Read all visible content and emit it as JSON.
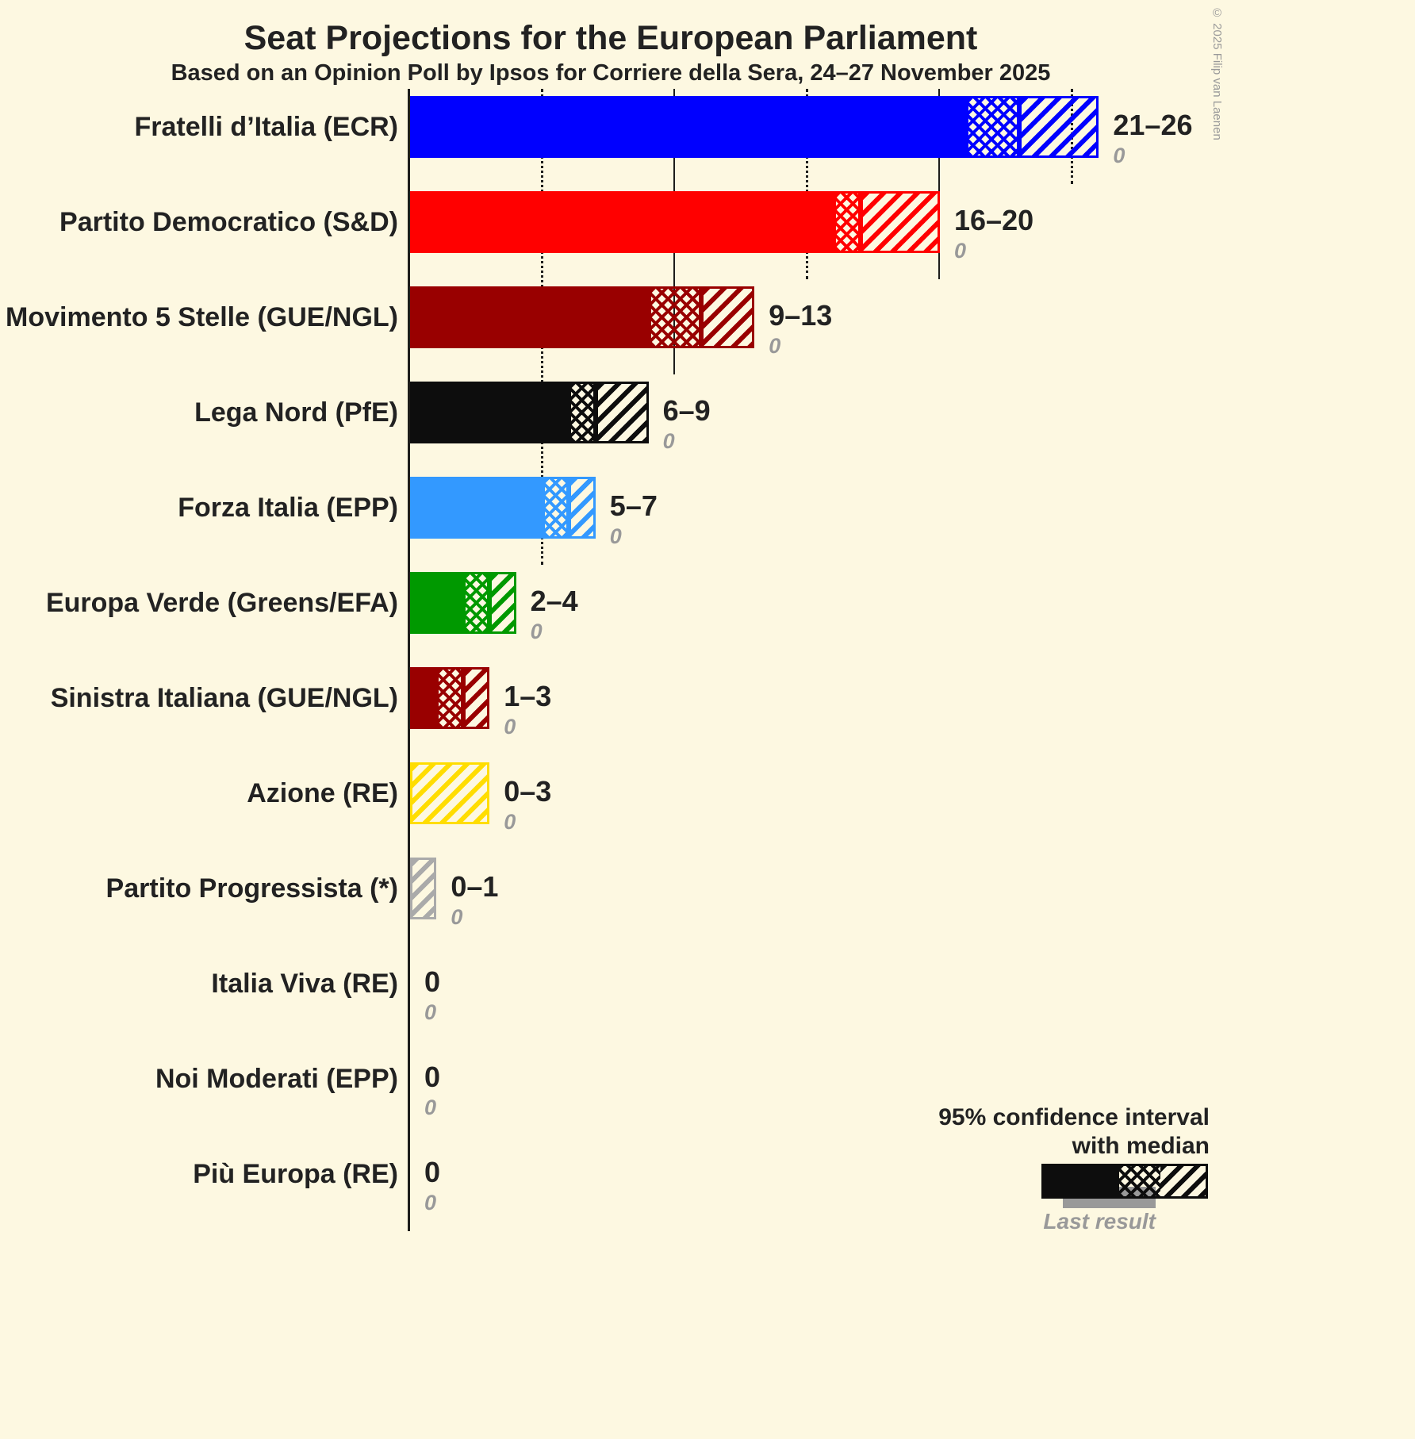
{
  "copyright": "© 2025 Filip van Laenen",
  "legend": {
    "ci_line1": "95% confidence interval",
    "ci_line2": "with median",
    "last_result": "Last result"
  },
  "chart_data": {
    "type": "bar",
    "title": "Seat Projections for the European Parliament",
    "subtitle": "Based on an Opinion Poll by Ipsos for Corriere della Sera, 24–27 November 2025",
    "unit": "seats",
    "xlim": [
      0,
      30
    ],
    "gridlines": [
      {
        "value": 5,
        "style": "dotted"
      },
      {
        "value": 10,
        "style": "solid"
      },
      {
        "value": 15,
        "style": "dotted"
      },
      {
        "value": 20,
        "style": "solid"
      },
      {
        "value": 25,
        "style": "dotted"
      }
    ],
    "parties": [
      {
        "label": "Fratelli d’Italia (ECR)",
        "color": "#0000ff",
        "ci_low": 21,
        "median": 23,
        "ci_high": 26,
        "range_label": "21–26",
        "last_result": 0
      },
      {
        "label": "Partito Democratico (S&D)",
        "color": "#ff0000",
        "ci_low": 16,
        "median": 17,
        "ci_high": 20,
        "range_label": "16–20",
        "last_result": 0
      },
      {
        "label": "Movimento 5 Stelle (GUE/NGL)",
        "color": "#990000",
        "ci_low": 9,
        "median": 11,
        "ci_high": 13,
        "range_label": "9–13",
        "last_result": 0
      },
      {
        "label": "Lega Nord (PfE)",
        "color": "#0d0d0d",
        "ci_low": 6,
        "median": 7,
        "ci_high": 9,
        "range_label": "6–9",
        "last_result": 0
      },
      {
        "label": "Forza Italia (EPP)",
        "color": "#3399ff",
        "ci_low": 5,
        "median": 6,
        "ci_high": 7,
        "range_label": "5–7",
        "last_result": 0
      },
      {
        "label": "Europa Verde (Greens/EFA)",
        "color": "#009900",
        "ci_low": 2,
        "median": 3,
        "ci_high": 4,
        "range_label": "2–4",
        "last_result": 0
      },
      {
        "label": "Sinistra Italiana (GUE/NGL)",
        "color": "#990000",
        "ci_low": 1,
        "median": 2,
        "ci_high": 3,
        "range_label": "1–3",
        "last_result": 0
      },
      {
        "label": "Azione (RE)",
        "color": "#ffdd00",
        "ci_low": 0,
        "median": 0,
        "ci_high": 3,
        "range_label": "0–3",
        "last_result": 0
      },
      {
        "label": "Partito Progressista (*)",
        "color": "#aaaaaa",
        "ci_low": 0,
        "median": 0,
        "ci_high": 1,
        "range_label": "0–1",
        "last_result": 0
      },
      {
        "label": "Italia Viva (RE)",
        "color": null,
        "ci_low": 0,
        "median": 0,
        "ci_high": 0,
        "range_label": "0",
        "last_result": 0
      },
      {
        "label": "Noi Moderati (EPP)",
        "color": null,
        "ci_low": 0,
        "median": 0,
        "ci_high": 0,
        "range_label": "0",
        "last_result": 0
      },
      {
        "label": "Più Europa (RE)",
        "color": null,
        "ci_low": 0,
        "median": 0,
        "ci_high": 0,
        "range_label": "0",
        "last_result": 0
      }
    ]
  }
}
